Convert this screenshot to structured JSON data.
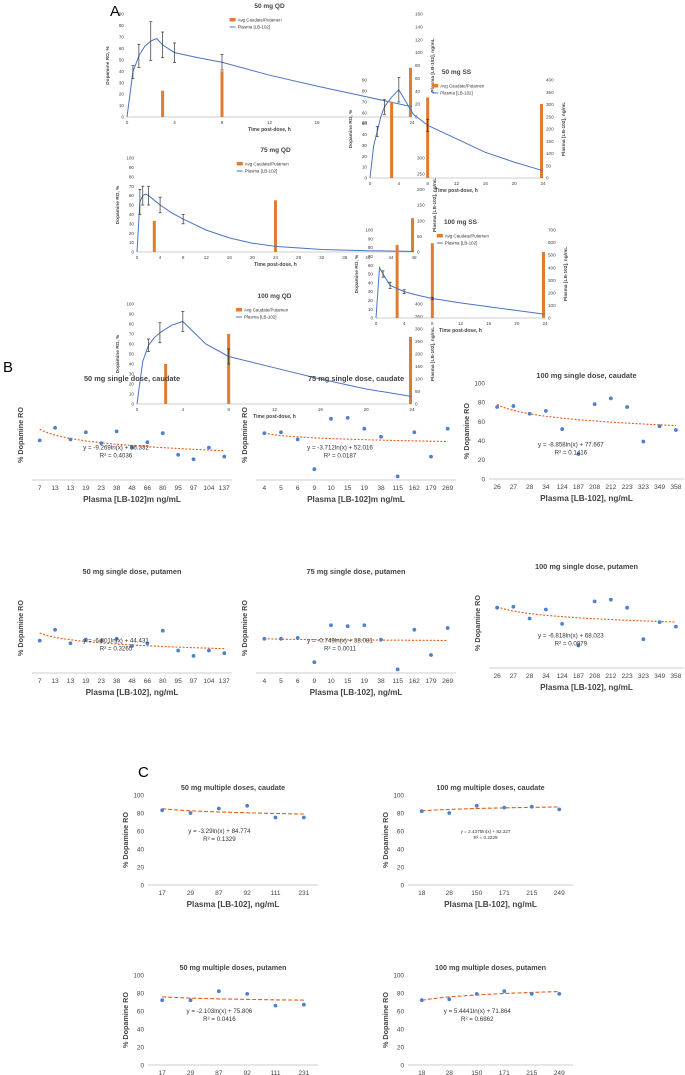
{
  "colors": {
    "bar": "#e07b2f",
    "line": "#4a74c4",
    "point": "#4f7fd0",
    "trend": "#e65c1a",
    "axis": "#bdbdbd",
    "text": "#444444"
  },
  "panel_letters": [
    "A",
    "B",
    "C"
  ],
  "chart_data": [
    {
      "id": "a1",
      "type": "bar+line",
      "title": "50 mg QD",
      "xlabel": "Time post-dose, h",
      "ylabel": "Dopamine RO, %",
      "y2label": "Plasma [LB-102], ng/mL",
      "xlim": [
        0,
        24
      ],
      "ylim": [
        0,
        90
      ],
      "y2lim": [
        0,
        160
      ],
      "xticks": [
        0,
        4,
        8,
        12,
        16,
        20,
        24
      ],
      "yticks": [
        0,
        10,
        20,
        30,
        40,
        50,
        60,
        70,
        80,
        90
      ],
      "y2ticks": [
        0,
        20,
        40,
        60,
        80,
        100,
        120,
        140,
        160
      ],
      "legend": [
        "Avg Caudate/Putamen",
        "Plasma [LB-102]"
      ],
      "bars": [
        {
          "x": 3,
          "y": 23
        },
        {
          "x": 8,
          "y": 40
        },
        {
          "x": 24,
          "y": 43
        }
      ],
      "line": {
        "x": [
          0,
          0.5,
          1,
          1.5,
          2,
          2.5,
          3,
          4,
          6,
          8,
          12,
          16,
          20,
          24
        ],
        "y": [
          0,
          70,
          95,
          110,
          118,
          122,
          112,
          100,
          92,
          85,
          65,
          48,
          32,
          16
        ]
      },
      "errorbars": [
        {
          "x": 0.5,
          "y": 70,
          "e": 10
        },
        {
          "x": 1,
          "y": 95,
          "e": 18
        },
        {
          "x": 2,
          "y": 118,
          "e": 30
        },
        {
          "x": 3,
          "y": 112,
          "e": 20
        },
        {
          "x": 4,
          "y": 100,
          "e": 15
        },
        {
          "x": 8,
          "y": 85,
          "e": 12
        }
      ]
    },
    {
      "id": "a2",
      "type": "bar+line",
      "title": "75 mg QD",
      "xlabel": "Time post-dose, h",
      "ylabel": "Dopamine RO, %",
      "y2label": "Plasma [LB-102], ng/mL",
      "xlim": [
        0,
        48
      ],
      "ylim": [
        0,
        100
      ],
      "y2lim": [
        0,
        300
      ],
      "xticks": [
        0,
        4,
        8,
        12,
        16,
        20,
        24,
        28,
        32,
        36,
        40,
        44,
        48
      ],
      "yticks": [
        0,
        10,
        20,
        30,
        40,
        50,
        60,
        70,
        80,
        90,
        100
      ],
      "y2ticks": [
        0,
        50,
        100,
        150,
        200,
        250,
        300
      ],
      "legend": [
        "Avg Caudate/Putamen",
        "Plasma [LB-102]"
      ],
      "bars": [
        {
          "x": 3,
          "y": 33
        },
        {
          "x": 24,
          "y": 55
        },
        {
          "x": 48,
          "y": 36
        }
      ],
      "line": {
        "x": [
          0,
          0.5,
          1,
          1.5,
          2,
          3,
          4,
          6,
          8,
          12,
          16,
          20,
          24,
          32,
          40,
          48
        ],
        "y": [
          0,
          160,
          180,
          185,
          180,
          165,
          150,
          125,
          105,
          70,
          45,
          28,
          18,
          8,
          4,
          2
        ]
      },
      "errorbars": [
        {
          "x": 0.5,
          "y": 160,
          "e": 40
        },
        {
          "x": 1,
          "y": 180,
          "e": 30
        },
        {
          "x": 2,
          "y": 180,
          "e": 30
        },
        {
          "x": 4,
          "y": 150,
          "e": 25
        },
        {
          "x": 8,
          "y": 105,
          "e": 15
        }
      ]
    },
    {
      "id": "a3",
      "type": "bar+line",
      "title": "100 mg QD",
      "xlabel": "Time post-dose, h",
      "ylabel": "Dopamine RO, %",
      "y2label": "Plasma [LB-102], ng/mL",
      "xlim": [
        0,
        24
      ],
      "ylim": [
        0,
        100
      ],
      "y2lim": [
        0,
        400
      ],
      "xticks": [
        0,
        4,
        8,
        12,
        16,
        20,
        24
      ],
      "yticks": [
        0,
        10,
        20,
        30,
        40,
        50,
        60,
        70,
        80,
        90,
        100
      ],
      "y2ticks": [
        0,
        50,
        100,
        150,
        200,
        250,
        300,
        350,
        400
      ],
      "legend": [
        "Avg Caudate/Putamen",
        "Plasma [LB-102]"
      ],
      "bars": [
        {
          "x": 2.5,
          "y": 40
        },
        {
          "x": 8,
          "y": 70
        },
        {
          "x": 24,
          "y": 67
        }
      ],
      "line": {
        "x": [
          0,
          0.5,
          1,
          1.5,
          2,
          3,
          4,
          6,
          8,
          12,
          16,
          20,
          24
        ],
        "y": [
          0,
          170,
          235,
          265,
          285,
          315,
          330,
          240,
          190,
          145,
          100,
          60,
          30
        ]
      },
      "errorbars": [
        {
          "x": 1,
          "y": 235,
          "e": 25
        },
        {
          "x": 2,
          "y": 285,
          "e": 40
        },
        {
          "x": 4,
          "y": 330,
          "e": 40
        },
        {
          "x": 8,
          "y": 190,
          "e": 30
        }
      ]
    },
    {
      "id": "a4",
      "type": "bar+line",
      "title": "50 mg SS",
      "xlabel": "Time post-dose, h",
      "ylabel": "Dopamine RO, %",
      "y2label": "Plasma [LB-102], ng/mL",
      "xlim": [
        0,
        24
      ],
      "ylim": [
        0,
        90
      ],
      "y2lim": [
        0,
        400
      ],
      "xticks": [
        0,
        4,
        8,
        12,
        16,
        20,
        24
      ],
      "yticks": [
        0,
        10,
        20,
        30,
        40,
        50,
        60,
        70,
        80,
        90
      ],
      "y2ticks": [
        0,
        50,
        100,
        150,
        200,
        250,
        300,
        350,
        400
      ],
      "legend": [
        "Avg Caudate/Putamen",
        "Plasma [LB-102]"
      ],
      "bars": [
        {
          "x": 3,
          "y": 70
        },
        {
          "x": 8,
          "y": 74
        },
        {
          "x": 24,
          "y": 68
        }
      ],
      "line": {
        "x": [
          0,
          0.5,
          1,
          1.5,
          2,
          3,
          4,
          6,
          8,
          12,
          16,
          20,
          24
        ],
        "y": [
          0,
          130,
          190,
          250,
          290,
          330,
          360,
          260,
          215,
          160,
          105,
          65,
          30
        ]
      },
      "errorbars": [
        {
          "x": 1,
          "y": 190,
          "e": 20
        },
        {
          "x": 2,
          "y": 290,
          "e": 30
        },
        {
          "x": 4,
          "y": 360,
          "e": 50
        },
        {
          "x": 8,
          "y": 215,
          "e": 25
        }
      ]
    },
    {
      "id": "a5",
      "type": "bar+line",
      "title": "100 mg SS",
      "xlabel": "Time post-dose, h",
      "ylabel": "Dopamine RO, %",
      "y2label": "Plasma [LB-102], ng/mL",
      "xlim": [
        0,
        24
      ],
      "ylim": [
        0,
        100
      ],
      "y2lim": [
        0,
        700
      ],
      "xticks": [
        0,
        4,
        8,
        12,
        16,
        20,
        24
      ],
      "yticks": [
        0,
        10,
        20,
        30,
        40,
        50,
        60,
        70,
        80,
        90,
        100
      ],
      "y2ticks": [
        0,
        100,
        200,
        300,
        400,
        500,
        600,
        700
      ],
      "legend": [
        "Avg Caudate/Putamen",
        "Plasma [LB-102]"
      ],
      "bars": [
        {
          "x": 3,
          "y": 83
        },
        {
          "x": 8,
          "y": 85
        },
        {
          "x": 24,
          "y": 75
        }
      ],
      "line": {
        "x": [
          0,
          0.5,
          1,
          2,
          3,
          4,
          6,
          8,
          12,
          16,
          20,
          24
        ],
        "y": [
          0,
          400,
          350,
          260,
          235,
          210,
          180,
          155,
          120,
          90,
          60,
          30
        ]
      },
      "errorbars": [
        {
          "x": 1,
          "y": 350,
          "e": 25
        },
        {
          "x": 2,
          "y": 260,
          "e": 25
        },
        {
          "x": 4,
          "y": 210,
          "e": 15
        },
        {
          "x": 8,
          "y": 155,
          "e": 10
        }
      ]
    },
    {
      "id": "b1",
      "type": "scatter",
      "title": "50 mg single dose, caudate",
      "xlabel": "Plasma [LB-102]m ng/mL",
      "ylabel": "% Dopamine RO",
      "ylim": [
        0,
        100
      ],
      "yticks": [],
      "categories": [
        "7",
        "13",
        "13",
        "19",
        "23",
        "38",
        "48",
        "66",
        "80",
        "95",
        "97",
        "104",
        "137"
      ],
      "values": [
        44,
        58,
        45,
        53,
        41,
        54,
        36,
        42,
        52,
        28,
        23,
        36,
        26
      ],
      "equation": "y = -9.269ln(x) + 56.332",
      "r2": "R² = 0.4036",
      "trend": {
        "a": -9.269,
        "b": 56.332
      }
    },
    {
      "id": "b2",
      "type": "scatter",
      "title": "75 mg single dose, caudate",
      "xlabel": "Plasma [LB-102]m ng/mL",
      "ylabel": "% Dopamine RO",
      "ylim": [
        0,
        100
      ],
      "yticks": [],
      "categories": [
        "4",
        "5",
        "6",
        "9",
        "10",
        "15",
        "19",
        "38",
        "115",
        "162",
        "179",
        "269"
      ],
      "values": [
        52,
        53,
        45,
        12,
        68,
        69,
        57,
        48,
        4,
        53,
        26,
        57
      ],
      "equation": "y = -3.712ln(x) + 52.016",
      "r2": "R² = 0.0187",
      "trend": {
        "a": -3.712,
        "b": 52.016
      }
    },
    {
      "id": "b3",
      "type": "scatter",
      "title": "100 mg single dose, caudate",
      "xlabel": "Plasma [LB-102], ng/mL",
      "ylabel": "% Dopamine RO",
      "ylim": [
        0,
        100
      ],
      "yticks": [
        0,
        20,
        40,
        60,
        80,
        100
      ],
      "categories": [
        "26",
        "27",
        "28",
        "34",
        "124",
        "187",
        "208",
        "212",
        "223",
        "323",
        "349",
        "358"
      ],
      "values": [
        75,
        76,
        68,
        71,
        52,
        26,
        78,
        84,
        75,
        39,
        55,
        51
      ],
      "equation": "y = -8.858ln(x) + 77.667",
      "r2": "R² = 0.1416",
      "trend": {
        "a": -8.858,
        "b": 77.667
      }
    },
    {
      "id": "b4",
      "type": "scatter",
      "title": "50 mg single dose, putamen",
      "xlabel": "Plasma [LB-102], ng/mL",
      "ylabel": "% Dopamine RO",
      "ylim": [
        0,
        100
      ],
      "yticks": [],
      "categories": [
        "7",
        "13",
        "13",
        "19",
        "23",
        "38",
        "48",
        "66",
        "80",
        "95",
        "97",
        "104",
        "137"
      ],
      "values": [
        36,
        48,
        33,
        37,
        36,
        38,
        30,
        33,
        47,
        25,
        19,
        25,
        22
      ],
      "equation": "y = -6.801ln(x) + 44.431",
      "r2": "R² = 0.3265",
      "trend": {
        "a": -6.801,
        "b": 44.431
      }
    },
    {
      "id": "b5",
      "type": "scatter",
      "title": "75 mg single dose, putamen",
      "xlabel": "Plasma [LB-102], ng/mL",
      "ylabel": "% Dopamine RO",
      "ylim": [
        0,
        100
      ],
      "yticks": [],
      "categories": [
        "4",
        "5",
        "6",
        "9",
        "10",
        "15",
        "19",
        "38",
        "115",
        "162",
        "179",
        "269"
      ],
      "values": [
        38,
        38,
        39,
        12,
        53,
        52,
        53,
        37,
        4,
        48,
        20,
        50
      ],
      "equation": "y = -0.749ln(x) + 38.081",
      "r2": "R² = 0.0011",
      "trend": {
        "a": -0.749,
        "b": 38.081
      }
    },
    {
      "id": "b6",
      "type": "scatter",
      "title": "100 mg single dose, putamen",
      "xlabel": "Plasma [LB-102], ng/mL",
      "ylabel": "% Dopamine RO",
      "ylim": [
        0,
        100
      ],
      "yticks": [],
      "categories": [
        "26",
        "27",
        "28",
        "34",
        "124",
        "187",
        "208",
        "212",
        "223",
        "323",
        "349",
        "358"
      ],
      "values": [
        67,
        68,
        55,
        65,
        49,
        25,
        74,
        76,
        67,
        32,
        51,
        46
      ],
      "equation": "y = -6.818ln(x) + 68.023",
      "r2": "R² = 0.0979",
      "trend": {
        "a": -6.818,
        "b": 68.023
      }
    },
    {
      "id": "c1",
      "type": "scatter",
      "title": "50 mg multiple doses, caudate",
      "xlabel": "Plasma [LB-102], ng/mL",
      "ylabel": "% Dopamine RO",
      "ylim": [
        0,
        100
      ],
      "yticks": [
        0,
        20,
        40,
        60,
        80,
        100
      ],
      "categories": [
        "17",
        "29",
        "87",
        "92",
        "111",
        "231"
      ],
      "values": [
        83,
        80,
        85,
        88,
        75,
        75
      ],
      "equation": "y = -3.29ln(x) + 84.774",
      "r2": "R² = 0.1329",
      "trend": {
        "a": -3.29,
        "b": 84.774
      }
    },
    {
      "id": "c2",
      "type": "scatter",
      "title": "100 mg multiple doses, caudate",
      "xlabel": "Plasma [LB-102], ng/mL",
      "ylabel": "% Dopamine RO",
      "ylim": [
        0,
        100
      ],
      "yticks": [
        0,
        20,
        40,
        60,
        80,
        100
      ],
      "categories": [
        "18",
        "28",
        "150",
        "171",
        "215",
        "249"
      ],
      "values": [
        82,
        80,
        88,
        86,
        87,
        84
      ],
      "equation": "y = 2.4375ln(x) + 82.327",
      "r2": "R² = 0.2229",
      "trend": {
        "a": 2.4375,
        "b": 82.327
      }
    },
    {
      "id": "c3",
      "type": "scatter",
      "title": "50 mg multiple doses, putamen",
      "xlabel": "Plasma [LB-102], ng/mL",
      "ylabel": "% Dopamine RO",
      "ylim": [
        0,
        100
      ],
      "yticks": [
        0,
        20,
        40,
        60,
        80,
        100
      ],
      "categories": [
        "17",
        "29",
        "87",
        "92",
        "111",
        "231"
      ],
      "values": [
        72,
        72,
        82,
        79,
        66,
        67
      ],
      "equation": "y = -2.103ln(x) + 75.806",
      "r2": "R² = 0.0416",
      "trend": {
        "a": -2.103,
        "b": 75.806
      }
    },
    {
      "id": "c4",
      "type": "scatter",
      "title": "100 mg multiple doses, putamen",
      "xlabel": "Plasma [LB-102], ng/mL",
      "ylabel": "% Dopamine RO",
      "ylim": [
        0,
        100
      ],
      "yticks": [
        0,
        20,
        40,
        60,
        80,
        100
      ],
      "categories": [
        "18",
        "28",
        "150",
        "171",
        "215",
        "249"
      ],
      "values": [
        72,
        73,
        79,
        82,
        79,
        79
      ],
      "equation": "y = 5.4441ln(x) + 71.864",
      "r2": "R² = 0.6862",
      "trend": {
        "a": 5.4441,
        "b": 71.864
      }
    }
  ]
}
